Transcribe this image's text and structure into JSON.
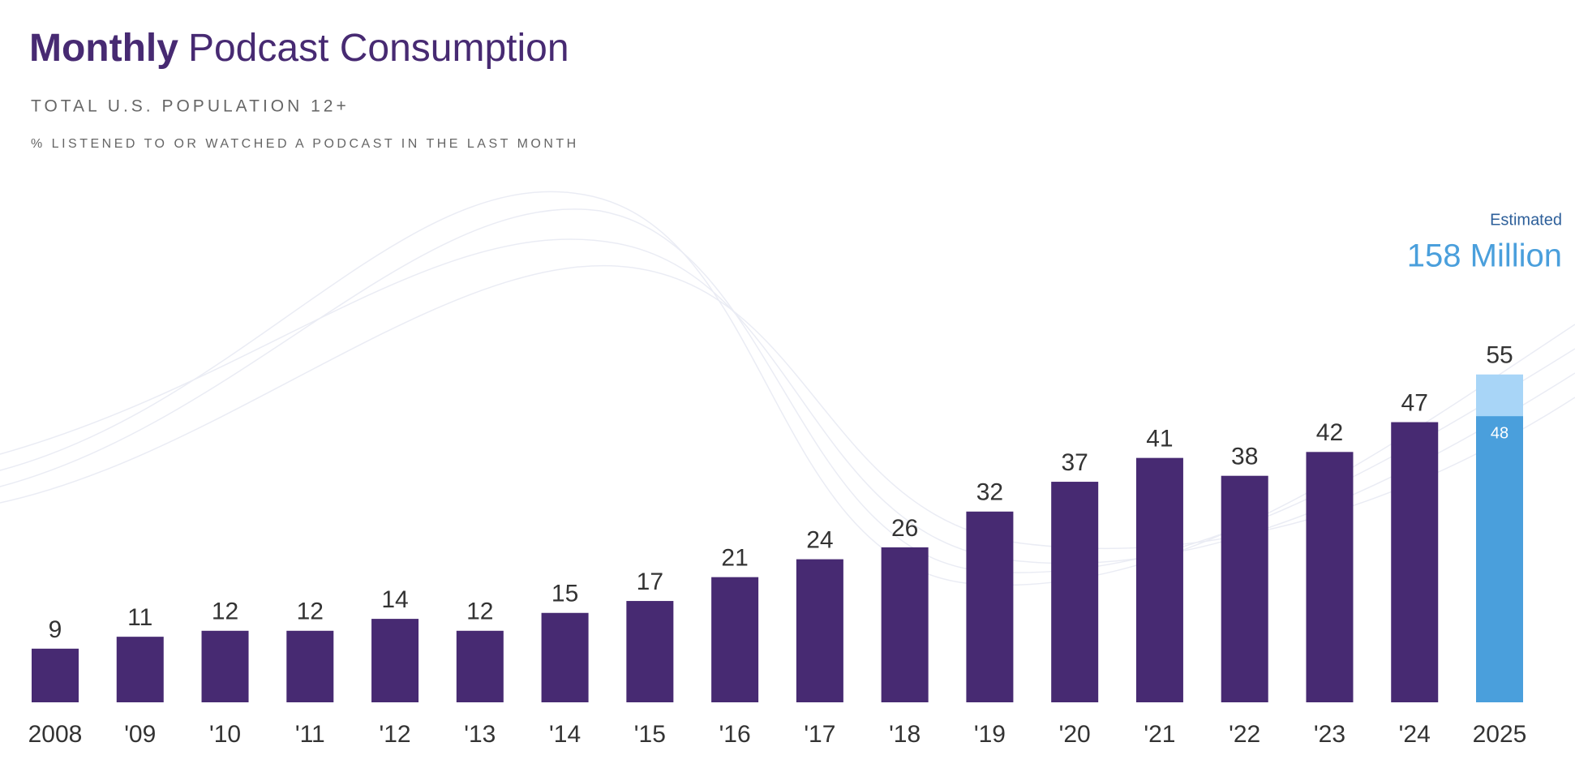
{
  "chart_data": {
    "type": "bar",
    "title_bold": "Monthly",
    "title": "Podcast Consumption",
    "subtitle": "TOTAL U.S. POPULATION 12+",
    "subtitle2": "% LISTENED TO OR WATCHED A PODCAST IN THE LAST MONTH",
    "categories": [
      "2008",
      "'09",
      "'10",
      "'11",
      "'12",
      "'13",
      "'14",
      "'15",
      "'16",
      "'17",
      "'18",
      "'19",
      "'20",
      "'21",
      "'22",
      "'23",
      "'24",
      "2025"
    ],
    "values": [
      9,
      11,
      12,
      12,
      14,
      12,
      15,
      17,
      21,
      24,
      26,
      32,
      37,
      41,
      38,
      42,
      47,
      55
    ],
    "colors": [
      "#472a72",
      "#472a72",
      "#472a72",
      "#472a72",
      "#472a72",
      "#472a72",
      "#472a72",
      "#472a72",
      "#472a72",
      "#472a72",
      "#472a72",
      "#472a72",
      "#472a72",
      "#472a72",
      "#472a72",
      "#472a72",
      "#472a72",
      "#a8d5f7"
    ],
    "inner_values": [
      null,
      null,
      null,
      null,
      null,
      null,
      null,
      null,
      null,
      null,
      null,
      null,
      null,
      null,
      null,
      null,
      null,
      48
    ],
    "inner_color": "#4a9fdc",
    "ylim": [
      0,
      60
    ],
    "annotation_label": "Estimated",
    "annotation_value": "158 Million"
  }
}
